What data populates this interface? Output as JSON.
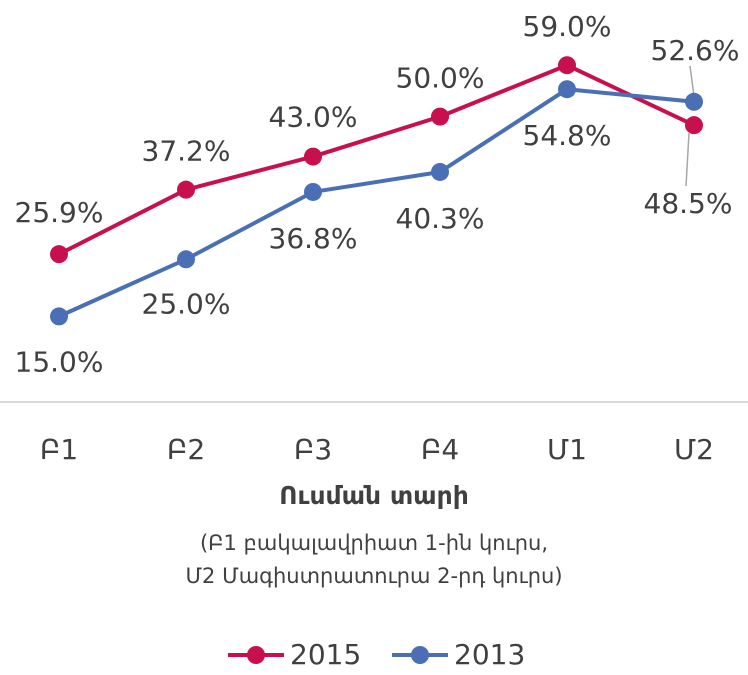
{
  "chart_data": {
    "type": "line",
    "categories": [
      "Բ1",
      "Բ2",
      "Բ3",
      "Բ4",
      "Մ1",
      "Մ2"
    ],
    "xlabel": "Ուսման տարի",
    "xlabel_note": [
      "(Բ1 բակալավրիատ 1-ին կուրս,",
      "Մ2 Մագիստրատուրա 2-րդ կուրս)"
    ],
    "series": [
      {
        "name": "2015",
        "color": "#c8104e",
        "values": [
          25.9,
          37.2,
          43.0,
          50.0,
          59.0,
          48.5
        ],
        "value_labels": [
          "25.9%",
          "37.2%",
          "43.0%",
          "50.0%",
          "59.0%",
          "48.5%"
        ]
      },
      {
        "name": "2013",
        "color": "#4a6fb5",
        "values": [
          15.0,
          25.0,
          36.8,
          40.3,
          54.8,
          52.6
        ],
        "value_labels": [
          "15.0%",
          "25.0%",
          "36.8%",
          "40.3%",
          "54.8%",
          "52.6%"
        ]
      }
    ],
    "ylim": [
      0,
      65
    ],
    "grid": false,
    "legend": "bottom"
  }
}
